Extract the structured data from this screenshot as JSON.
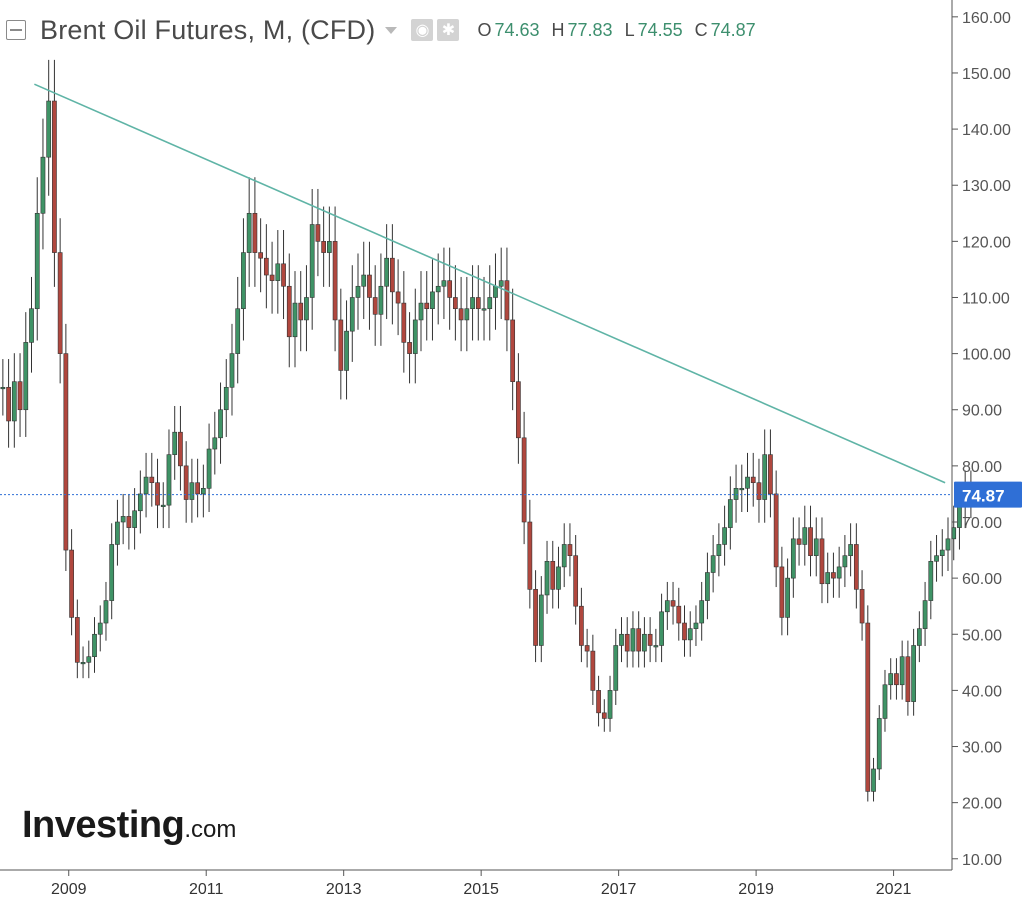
{
  "header": {
    "title": "Brent Oil Futures, M, (CFD)",
    "ohlc": [
      {
        "label": "O",
        "value": "74.63"
      },
      {
        "label": "H",
        "value": "77.83"
      },
      {
        "label": "L",
        "value": "74.55"
      },
      {
        "label": "C",
        "value": "74.87"
      }
    ],
    "icons": [
      "eye-icon",
      "gear-icon"
    ]
  },
  "watermark": {
    "brand": "Investing",
    "suffix": "com"
  },
  "colors": {
    "up": "#3f9366",
    "down": "#b0473e",
    "trendline": "#5fb4a6",
    "last_price": "#2f6fd6",
    "axis_text": "#555555"
  },
  "chart_data": {
    "type": "candlestick",
    "title": "Brent Oil Futures, M, (CFD)",
    "interval": "monthly",
    "last_price": 74.87,
    "last_price_label": "74.87",
    "ylim": [
      8,
      163
    ],
    "xlim": [
      2008.0,
      2021.85
    ],
    "y_ticks": [
      10,
      20,
      30,
      40,
      50,
      60,
      70,
      80,
      90,
      100,
      110,
      120,
      130,
      140,
      150,
      160
    ],
    "y_tick_labels": [
      "10.00",
      "20.00",
      "30.00",
      "40.00",
      "50.00",
      "60.00",
      "70.00",
      "80.00",
      "90.00",
      "100.00",
      "110.00",
      "120.00",
      "130.00",
      "140.00",
      "150.00",
      "160.00"
    ],
    "x_ticks": [
      2009,
      2011,
      2013,
      2015,
      2017,
      2019,
      2021
    ],
    "x_tick_labels": [
      "2009",
      "2011",
      "2013",
      "2015",
      "2017",
      "2019",
      "2021"
    ],
    "grid": false,
    "trendline": {
      "from": [
        2008.5,
        148
      ],
      "to": [
        2021.75,
        77
      ]
    },
    "closes": [
      94,
      88,
      95,
      90,
      102,
      108,
      125,
      135,
      145,
      118,
      100,
      65,
      53,
      45,
      45,
      46,
      50,
      52,
      56,
      66,
      70,
      71,
      69,
      72,
      75,
      78,
      77,
      73,
      73,
      82,
      86,
      80,
      74,
      77,
      75,
      76,
      83,
      85,
      90,
      94,
      100,
      108,
      118,
      125,
      118,
      117,
      114,
      113,
      116,
      112,
      103,
      109,
      106,
      110,
      123,
      120,
      118,
      120,
      106,
      97,
      104,
      110,
      112,
      114,
      110,
      107,
      112,
      117,
      111,
      109,
      102,
      100,
      106,
      109,
      108,
      111,
      112,
      113,
      110,
      108,
      106,
      108,
      110,
      108,
      108,
      110,
      112,
      113,
      106,
      95,
      85,
      70,
      58,
      48,
      57,
      63,
      58,
      62,
      66,
      64,
      55,
      48,
      47,
      40,
      36,
      35,
      40,
      48,
      50,
      47,
      51,
      47,
      50,
      48,
      48,
      54,
      56,
      55,
      52,
      49,
      51,
      52,
      56,
      61,
      64,
      66,
      69,
      74,
      76,
      76,
      78,
      77,
      74,
      82,
      75,
      62,
      53,
      60,
      67,
      66,
      69,
      64,
      67,
      59,
      61,
      60,
      62,
      64,
      66,
      58,
      52,
      22,
      26,
      35,
      41,
      43,
      41,
      46,
      38,
      48,
      51,
      56,
      63,
      64,
      65,
      67,
      69,
      73,
      75,
      74.87
    ]
  }
}
